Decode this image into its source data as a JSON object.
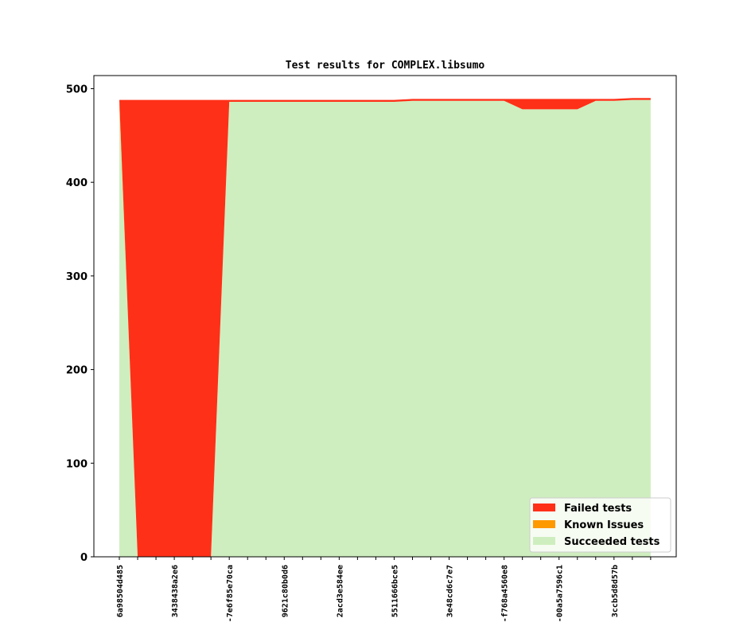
{
  "chart_data": {
    "type": "stacked_area",
    "title": "Test results for COMPLEX.libsumo",
    "categories": [
      "6a98504d485",
      null,
      null,
      "3438438a2e6",
      null,
      null,
      "-7e6f85e70ca",
      null,
      null,
      "9621c80b0d6",
      null,
      null,
      "2acd3e584ee",
      null,
      null,
      "5511666bce5",
      null,
      null,
      "3e48cd6c7e7",
      null,
      null,
      "-f768a4560e8",
      null,
      null,
      "-00a5a7596c1",
      null,
      null,
      "3ccb5d8d57b",
      null,
      null
    ],
    "series": [
      {
        "name": "Failed tests",
        "color": "#ff3018",
        "values": [
          0,
          488,
          488,
          488,
          488,
          488,
          2,
          2,
          2,
          2,
          2,
          2,
          2,
          2,
          2,
          2,
          2,
          2,
          2,
          2,
          2,
          2,
          11,
          11,
          11,
          11,
          2,
          2,
          2,
          2
        ]
      },
      {
        "name": "Known Issues",
        "color": "#ff9900",
        "values": [
          5,
          0,
          0,
          0,
          0,
          0,
          0,
          0,
          0,
          0,
          0,
          0,
          0,
          0,
          0,
          0,
          0,
          0,
          0,
          0,
          0,
          0,
          0,
          0,
          0,
          0,
          0,
          0,
          0,
          0
        ]
      },
      {
        "name": "Succeeded tests",
        "color": "#cfeebf",
        "values": [
          483,
          0,
          0,
          0,
          0,
          0,
          486,
          486,
          486,
          486,
          486,
          486,
          486,
          486,
          486,
          486,
          487,
          487,
          487,
          487,
          487,
          487,
          478,
          478,
          478,
          478,
          487,
          487,
          488,
          488
        ]
      }
    ],
    "ylim": [
      0,
      514
    ],
    "yticks": [
      0,
      100,
      200,
      300,
      400,
      500
    ],
    "legend": "lower right"
  }
}
